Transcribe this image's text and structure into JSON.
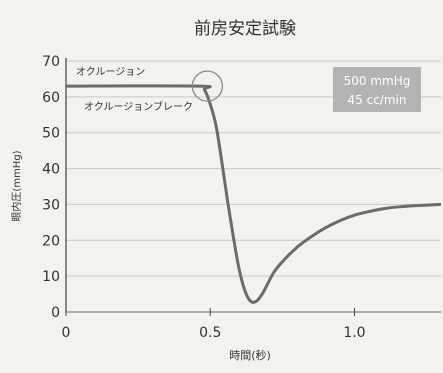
{
  "chart_data": {
    "type": "line",
    "title": "前房安定試験",
    "xlabel": "時間(秒)",
    "ylabel": "眼内圧(mmHg)",
    "xlim": [
      0,
      1.3
    ],
    "ylim": [
      0,
      70
    ],
    "xticks": [
      0,
      0.5,
      1.0
    ],
    "xtick_labels": [
      "0",
      "0.5",
      "1.0"
    ],
    "yticks": [
      0,
      10,
      20,
      30,
      40,
      50,
      60,
      70
    ],
    "ytick_labels": [
      "0",
      "10",
      "20",
      "30",
      "40",
      "50",
      "60",
      "70"
    ],
    "grid": true,
    "series": [
      {
        "color": "#6b6b6b",
        "x": [
          0,
          0.46,
          0.48,
          0.5,
          0.52,
          0.54,
          0.56,
          0.58,
          0.6,
          0.62,
          0.64,
          0.66,
          0.68,
          0.7,
          0.72,
          0.75,
          0.8,
          0.85,
          0.9,
          0.95,
          1.0,
          1.05,
          1.1,
          1.15,
          1.2,
          1.25,
          1.3
        ],
        "y": [
          63,
          63,
          62,
          58,
          52,
          42,
          31,
          21,
          12,
          6,
          3,
          3,
          5,
          8,
          11,
          14,
          18,
          21,
          23.5,
          25.5,
          27,
          28,
          28.8,
          29.3,
          29.6,
          29.8,
          30
        ]
      }
    ],
    "annotations": {
      "occlusion": "オクルージョン",
      "occlusion_break": "オクルージョンブレーク",
      "condition_line1": "500 mmHg",
      "condition_line2": "45 cc/min"
    },
    "colors": {
      "line": "#6b6b6b",
      "grid": "#c8c8c8",
      "condition_box": "#b3b3b3",
      "circle": "#8a8a8a"
    }
  }
}
